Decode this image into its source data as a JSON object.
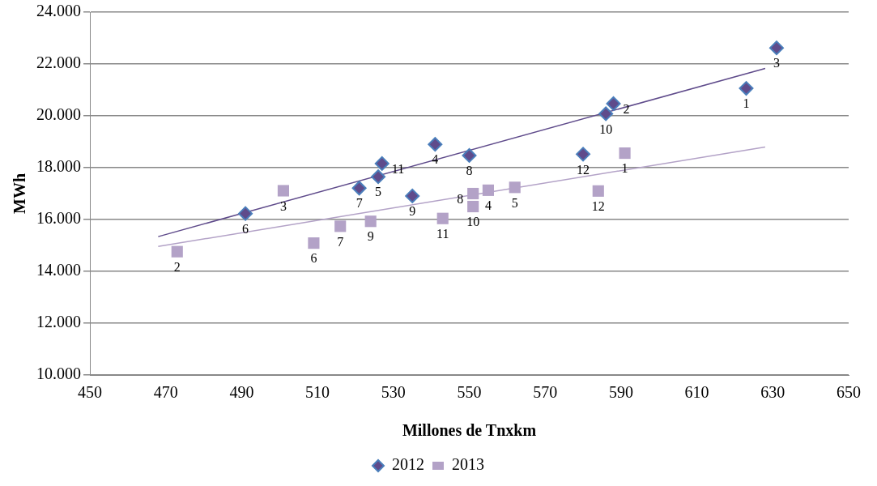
{
  "chart_data": {
    "type": "scatter",
    "xlabel": "Millones de Tnxkm",
    "ylabel": "MWh",
    "xlim": [
      450,
      650
    ],
    "xticks": [
      450,
      470,
      490,
      510,
      530,
      550,
      570,
      590,
      610,
      630,
      650
    ],
    "ylim": [
      10000,
      24000
    ],
    "yticks": [
      {
        "value": 10000,
        "label": "10.000"
      },
      {
        "value": 12000,
        "label": "12.000"
      },
      {
        "value": 14000,
        "label": "14.000"
      },
      {
        "value": 16000,
        "label": "16.000"
      },
      {
        "value": 18000,
        "label": "18.000"
      },
      {
        "value": 20000,
        "label": "20.000"
      },
      {
        "value": 22000,
        "label": "22.000"
      },
      {
        "value": 24000,
        "label": "24.000"
      }
    ],
    "grid": "y",
    "legend": "bottom",
    "series": [
      {
        "name": "2012",
        "type": "scatter",
        "marker": "diamond",
        "color": "#5f4b8b",
        "x": [
          623,
          588,
          631,
          541,
          526,
          491,
          521,
          550,
          535,
          586,
          527,
          580
        ],
        "values": [
          21060,
          20470,
          22620,
          18900,
          17650,
          16230,
          17210,
          18470,
          16910,
          20080,
          18160,
          18520
        ]
      },
      {
        "name": "2013",
        "type": "scatter",
        "marker": "square",
        "color": "#b3a2c7",
        "x": [
          591,
          473,
          501,
          555,
          562,
          509,
          516,
          551,
          524,
          551,
          543,
          584
        ],
        "values": [
          18560,
          14760,
          17110,
          17130,
          17240,
          15090,
          15740,
          17000,
          15930,
          16500,
          16040,
          17100
        ]
      },
      {
        "type": "line",
        "marker": "none",
        "color": "#5f4b8b",
        "x": [
          468,
          628
        ],
        "values": [
          15340,
          21830
        ]
      },
      {
        "type": "line",
        "marker": "none",
        "color": "#b3a2c7",
        "x": [
          468,
          628
        ],
        "values": [
          14960,
          18800
        ]
      }
    ],
    "annotations": [
      {
        "text": "1",
        "x": 623,
        "y": 21060
      },
      {
        "text": "2",
        "x": 588,
        "y": 20470
      },
      {
        "text": "3",
        "x": 631,
        "y": 22620
      },
      {
        "text": "4",
        "x": 541,
        "y": 18900
      },
      {
        "text": "5",
        "x": 526,
        "y": 17650
      },
      {
        "text": "6",
        "x": 491,
        "y": 16230
      },
      {
        "text": "7",
        "x": 521,
        "y": 17210
      },
      {
        "text": "8",
        "x": 550,
        "y": 18470
      },
      {
        "text": "9",
        "x": 535,
        "y": 16910
      },
      {
        "text": "10",
        "x": 586,
        "y": 20080
      },
      {
        "text": "11",
        "x": 527,
        "y": 18160
      },
      {
        "text": "12",
        "x": 580,
        "y": 18520
      },
      {
        "text": "1",
        "x": 591,
        "y": 18560
      },
      {
        "text": "2",
        "x": 473,
        "y": 14760
      },
      {
        "text": "3",
        "x": 501,
        "y": 17110
      },
      {
        "text": "4",
        "x": 555,
        "y": 17130
      },
      {
        "text": "5",
        "x": 562,
        "y": 17240
      },
      {
        "text": "6",
        "x": 509,
        "y": 15090
      },
      {
        "text": "7",
        "x": 516,
        "y": 15740
      },
      {
        "text": "8",
        "x": 551,
        "y": 17000
      },
      {
        "text": "9",
        "x": 524,
        "y": 15930
      },
      {
        "text": "10",
        "x": 551,
        "y": 16500
      },
      {
        "text": "11",
        "x": 543,
        "y": 16040
      },
      {
        "text": "12",
        "x": 584,
        "y": 17100
      }
    ]
  }
}
